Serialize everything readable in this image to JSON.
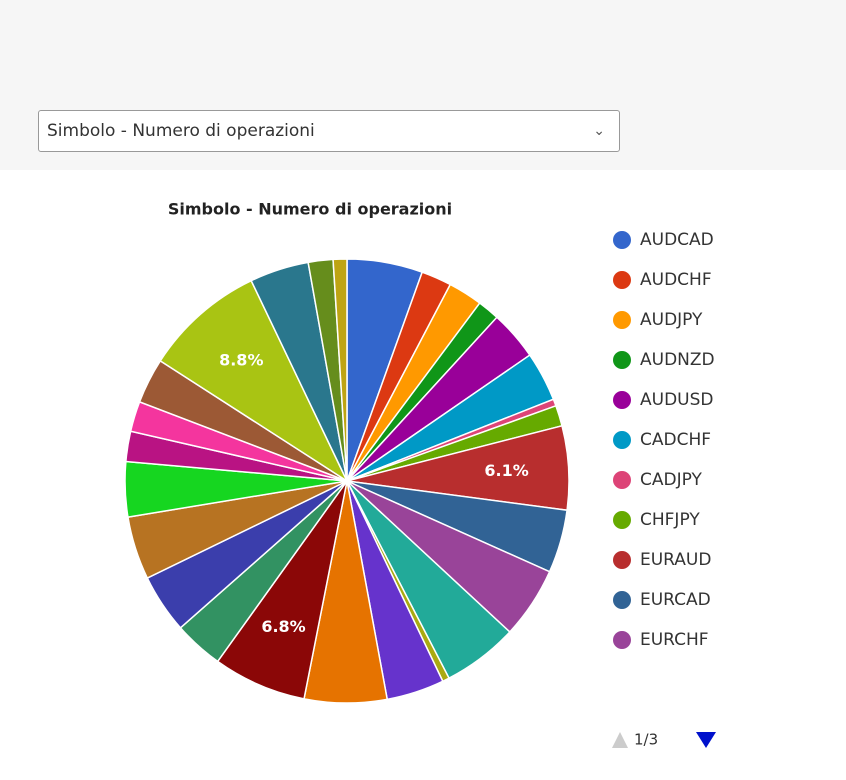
{
  "dropdown": {
    "selected": "Simbolo - Numero di operazioni"
  },
  "chart_data": {
    "type": "pie",
    "title": "Simbolo - Numero di operazioni",
    "categories": [
      "AUDCAD",
      "AUDCHF",
      "AUDJPY",
      "AUDNZD",
      "AUDUSD",
      "CADCHF",
      "CADJPY",
      "CHFJPY",
      "EURAUD",
      "EURCAD",
      "EURCHF",
      null,
      null,
      null,
      null,
      null,
      null,
      null,
      null,
      null,
      null,
      null,
      null,
      null,
      null,
      null,
      null
    ],
    "values": [
      5.5,
      2.2,
      2.5,
      1.6,
      3.6,
      3.6,
      0.5,
      1.5,
      6.1,
      4.6,
      5.2,
      5.5,
      0.5,
      4.2,
      6.0,
      6.8,
      3.6,
      4.3,
      4.6,
      4.0,
      2.2,
      2.2,
      3.3,
      8.8,
      4.3,
      1.8,
      1.0
    ],
    "value_labels": [
      null,
      null,
      null,
      null,
      null,
      null,
      null,
      null,
      "6.1%",
      null,
      null,
      null,
      null,
      null,
      null,
      "6.8%",
      null,
      null,
      null,
      null,
      null,
      null,
      null,
      "8.8%",
      null,
      null,
      null
    ],
    "colors": [
      "#3366cc",
      "#dc3912",
      "#ff9900",
      "#109618",
      "#990099",
      "#0099c6",
      "#dd4477",
      "#66aa00",
      "#b82e2e",
      "#316395",
      "#994499",
      "#22aa99",
      "#aaaa11",
      "#6633cc",
      "#e67300",
      "#8b0707",
      "#329262",
      "#3b3eac",
      "#b77322",
      "#16d620",
      "#b91383",
      "#f4359e",
      "#9c5935",
      "#a9c413",
      "#2a778d",
      "#668d1c",
      "#bea413"
    ],
    "legend": "right",
    "legend_page": "1/3"
  }
}
